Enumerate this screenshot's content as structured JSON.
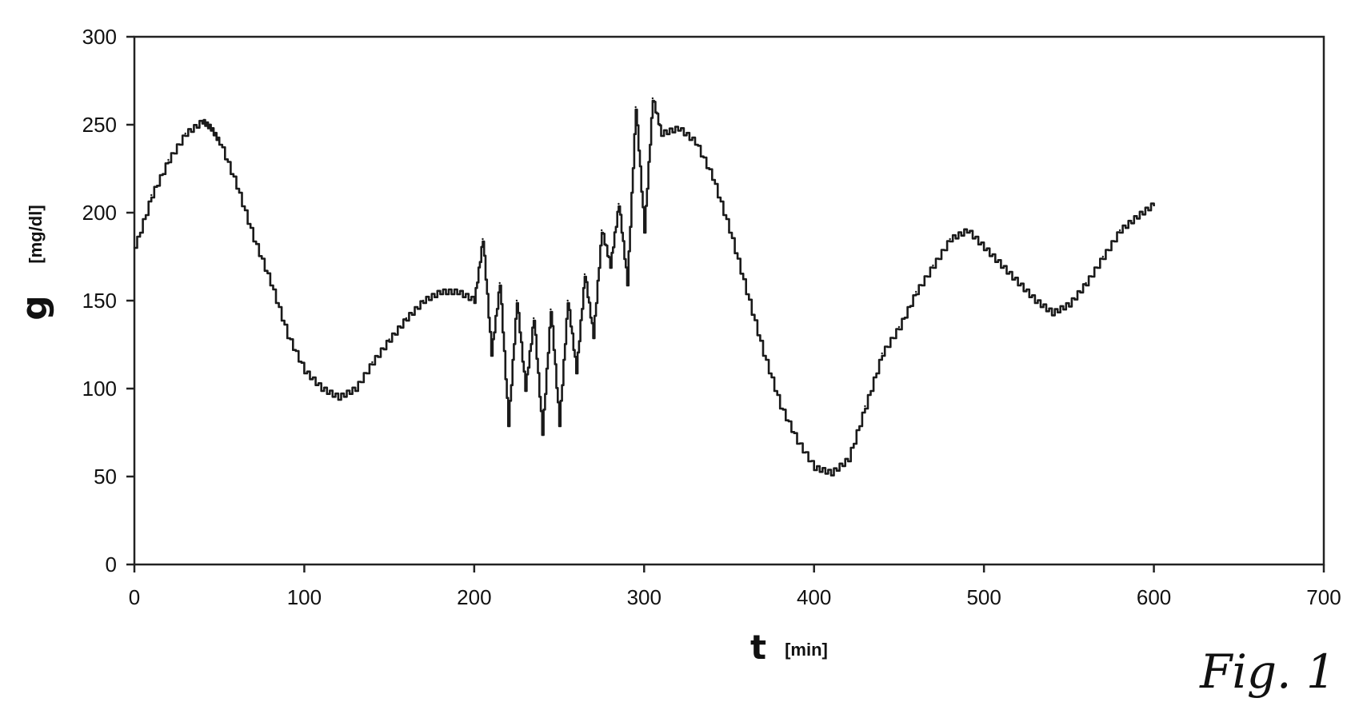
{
  "chart_data": {
    "type": "line",
    "xlabel_var": "t",
    "xlabel_unit": "[min]",
    "ylabel_var": "g",
    "ylabel_unit": "[mg/dl]",
    "xlim": [
      0,
      700
    ],
    "ylim": [
      0,
      300
    ],
    "x_ticks": [
      "0",
      "100",
      "200",
      "300",
      "400",
      "500",
      "600",
      "700"
    ],
    "y_ticks": [
      "0",
      "50",
      "100",
      "150",
      "200",
      "250",
      "300"
    ],
    "grid": false,
    "series": [
      {
        "x": [
          0,
          10,
          20,
          30,
          40,
          45,
          50,
          60,
          70,
          80,
          90,
          100,
          110,
          120,
          130,
          140,
          150,
          160,
          170,
          180,
          190,
          200,
          205,
          210,
          215,
          220,
          225,
          230,
          235,
          240,
          245,
          250,
          255,
          260,
          265,
          270,
          275,
          280,
          285,
          290,
          295,
          300,
          305,
          310,
          320,
          330,
          340,
          350,
          360,
          370,
          380,
          390,
          400,
          410,
          420,
          430,
          440,
          450,
          460,
          470,
          480,
          490,
          500,
          510,
          520,
          530,
          540,
          550,
          560,
          570,
          580,
          590,
          600
        ],
        "y": [
          180,
          210,
          230,
          245,
          252,
          248,
          240,
          215,
          185,
          160,
          130,
          110,
          100,
          95,
          100,
          115,
          128,
          140,
          150,
          155,
          155,
          150,
          185,
          120,
          160,
          80,
          150,
          100,
          140,
          75,
          145,
          80,
          150,
          110,
          165,
          130,
          190,
          170,
          205,
          160,
          260,
          190,
          265,
          245,
          248,
          240,
          220,
          190,
          155,
          120,
          90,
          70,
          55,
          52,
          60,
          90,
          120,
          135,
          155,
          170,
          185,
          190,
          180,
          170,
          160,
          150,
          143,
          148,
          160,
          175,
          190,
          198,
          205
        ]
      }
    ]
  },
  "figure_label": "Fig. 1"
}
